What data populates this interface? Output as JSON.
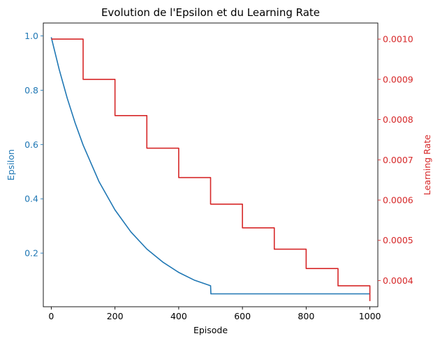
{
  "chart_data": {
    "type": "line",
    "title": "Evolution de l'Epsilon et du Learning Rate",
    "xlabel": "Episode",
    "ylabel_left": "Epsilon",
    "ylabel_right": "Learning Rate",
    "xlim": [
      -25,
      1025
    ],
    "ylim_left": [
      0.0025,
      1.0475
    ],
    "ylim_right": [
      0.000335,
      0.00104
    ],
    "x_ticks": [
      0,
      200,
      400,
      600,
      800,
      1000
    ],
    "x_tick_labels": [
      "0",
      "200",
      "400",
      "600",
      "800",
      "1000"
    ],
    "y_left_ticks": [
      0.2,
      0.4,
      0.6,
      0.8,
      1.0
    ],
    "y_left_tick_labels": [
      "0.2",
      "0.4",
      "0.6",
      "0.8",
      "1.0"
    ],
    "y_right_ticks": [
      0.0004,
      0.0005,
      0.0006,
      0.0007,
      0.0008,
      0.0009,
      0.001
    ],
    "y_right_tick_labels": [
      "0.0004",
      "0.0005",
      "0.0006",
      "0.0007",
      "0.0008",
      "0.0009",
      "0.0010"
    ],
    "grid": false,
    "colors": {
      "epsilon": "#1f77b4",
      "learning_rate": "#d62728",
      "axes": "#000000"
    },
    "series": [
      {
        "axis": "left",
        "style": "decay-then-floor",
        "x": [
          0,
          25,
          50,
          75,
          100,
          150,
          200,
          250,
          300,
          350,
          400,
          450,
          500,
          501,
          1000
        ],
        "values": [
          0.995,
          0.876,
          0.771,
          0.679,
          0.598,
          0.463,
          0.359,
          0.278,
          0.215,
          0.167,
          0.129,
          0.1,
          0.08,
          0.05,
          0.05
        ]
      },
      {
        "axis": "right",
        "style": "step",
        "x": [
          0,
          100,
          200,
          300,
          400,
          500,
          600,
          700,
          800,
          900,
          1000
        ],
        "values": [
          0.001,
          0.0009,
          0.00081,
          0.000729,
          0.000656,
          0.00059,
          0.000531,
          0.000478,
          0.00043,
          0.000387,
          0.000349
        ]
      }
    ]
  }
}
